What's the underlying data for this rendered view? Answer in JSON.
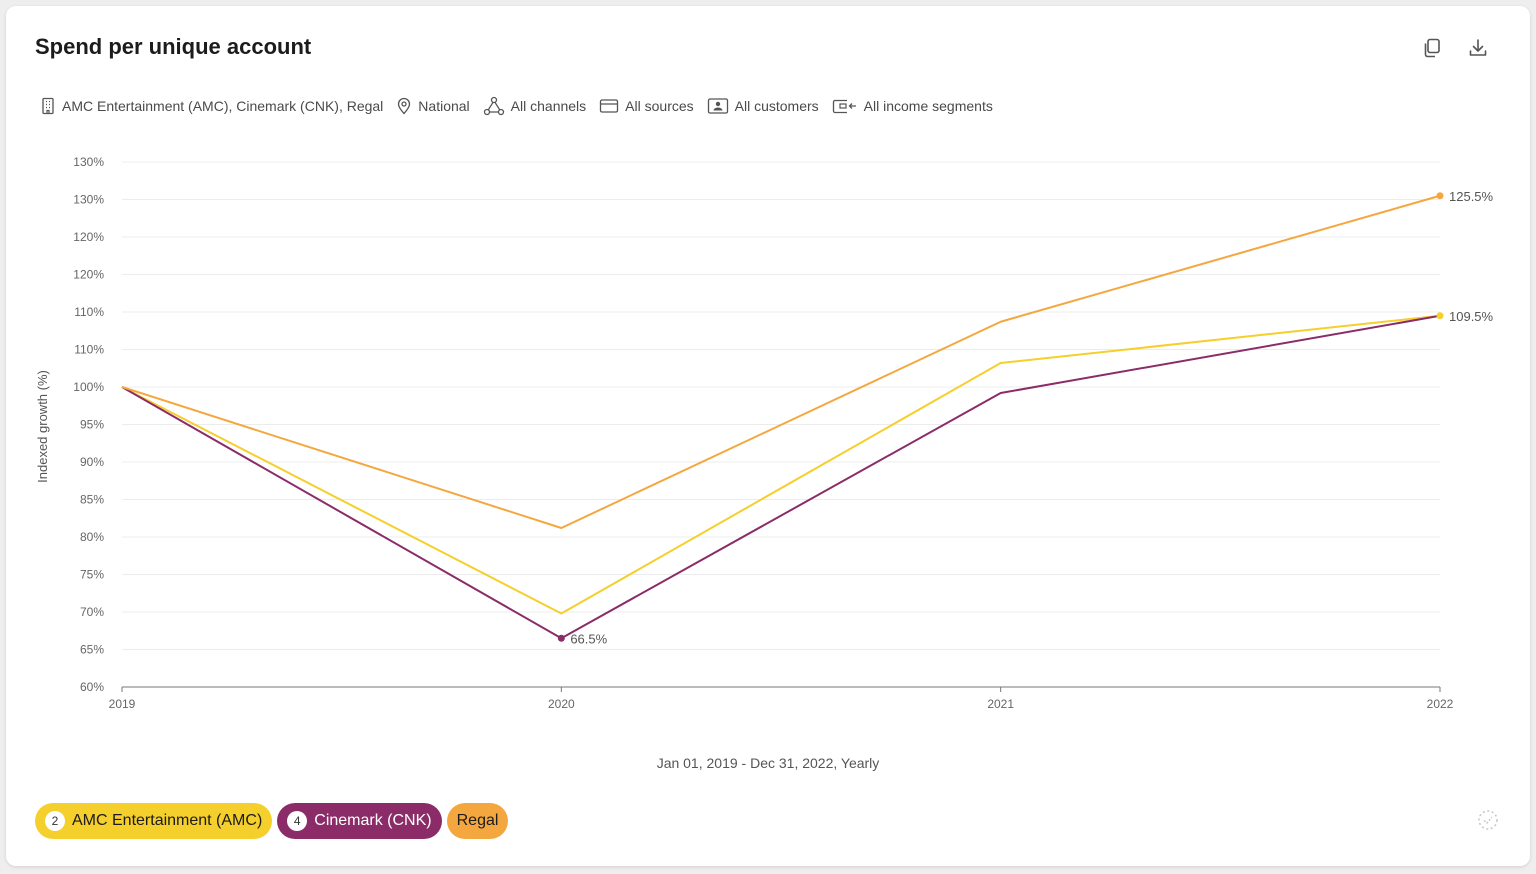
{
  "header": {
    "title": "Spend per unique account",
    "copy_icon": "copy-icon",
    "download_icon": "download-icon"
  },
  "filters": [
    {
      "icon": "building-icon",
      "label": "AMC Entertainment (AMC), Cinemark (CNK), Regal"
    },
    {
      "icon": "location-pin-icon",
      "label": "National"
    },
    {
      "icon": "channels-icon",
      "label": "All channels"
    },
    {
      "icon": "card-icon",
      "label": "All sources"
    },
    {
      "icon": "customer-icon",
      "label": "All customers"
    },
    {
      "icon": "wallet-icon",
      "label": "All income segments"
    }
  ],
  "chart_data": {
    "type": "line",
    "title": "Spend per unique account",
    "ylabel": "Indexed growth (%)",
    "xlabel": "",
    "x": [
      "2019",
      "2020",
      "2021",
      "2022"
    ],
    "y_tick_labels": [
      "60%",
      "65%",
      "70%",
      "75%",
      "80%",
      "85%",
      "90%",
      "95%",
      "100%",
      "110%",
      "110%",
      "120%",
      "120%",
      "130%",
      "130%"
    ],
    "ylim": [
      60,
      130
    ],
    "grid": true,
    "series": [
      {
        "name": "AMC Entertainment (AMC)",
        "color": "#f5cf2b",
        "values": [
          100,
          69.8,
          103.2,
          109.5
        ]
      },
      {
        "name": "Cinemark (CNK)",
        "color": "#8b2c68",
        "values": [
          100,
          66.5,
          99.2,
          109.5
        ]
      },
      {
        "name": "Regal",
        "color": "#f4a73f",
        "values": [
          100,
          81.2,
          108.7,
          125.5
        ]
      }
    ],
    "annotations": [
      {
        "series": "Cinemark (CNK)",
        "x": "2020",
        "label": "66.5%"
      },
      {
        "series": "Regal",
        "x": "2022",
        "label": "125.5%"
      },
      {
        "series": "AMC Entertainment (AMC)",
        "x": "2022",
        "label": "109.5%"
      }
    ]
  },
  "period_label": "Jan 01, 2019 - Dec 31, 2022, Yearly",
  "legend": [
    {
      "badge": "2",
      "label": "AMC Entertainment (AMC)",
      "color": "#f5cf2b",
      "text_color": "#1c1c1c"
    },
    {
      "badge": "4",
      "label": "Cinemark (CNK)",
      "color": "#8b2c68",
      "text_color": "#ffffff"
    },
    {
      "badge": "",
      "label": "Regal",
      "color": "#f4a73f",
      "text_color": "#1c1c1c"
    }
  ]
}
